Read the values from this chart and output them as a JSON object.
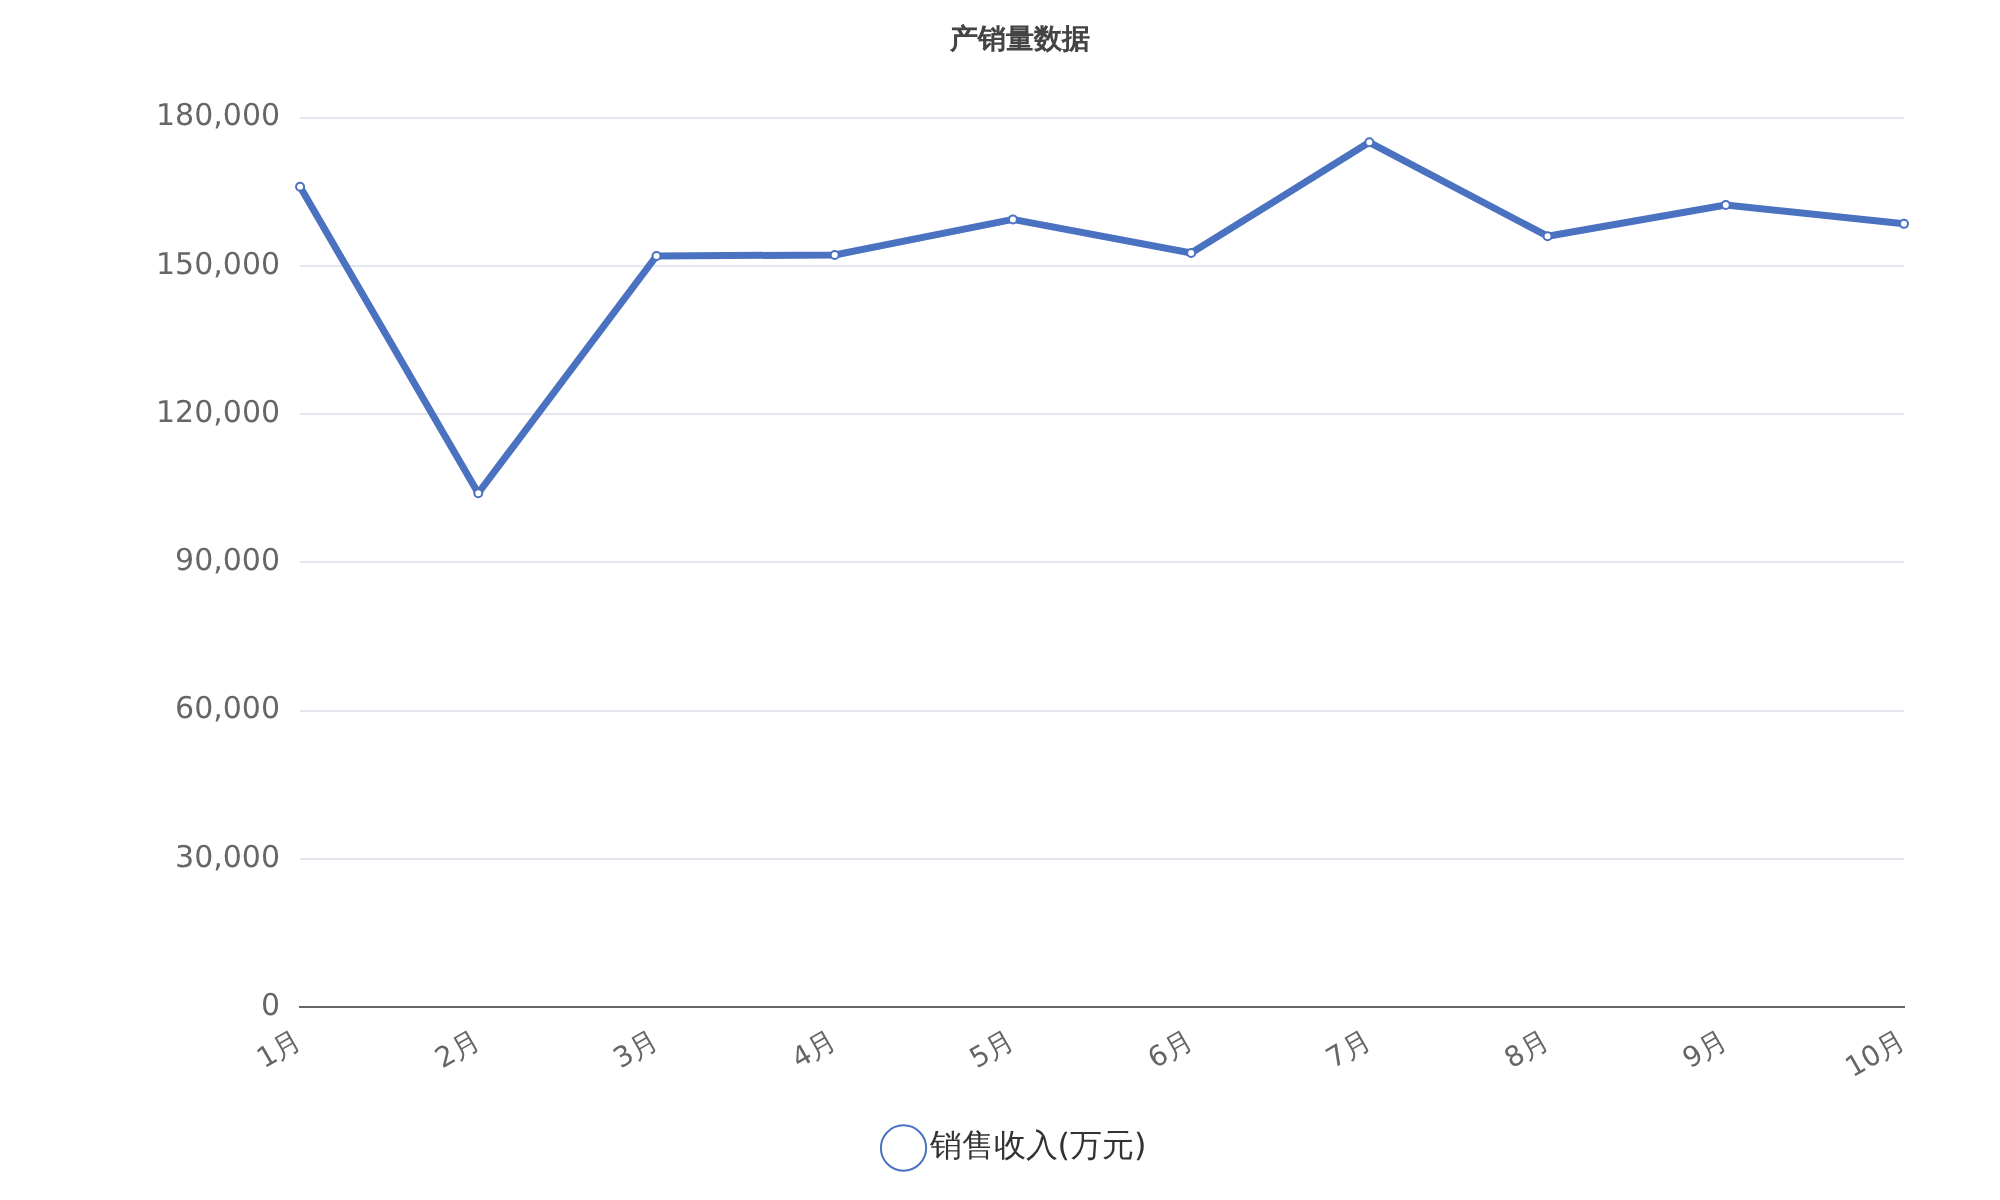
{
  "chart_data": {
    "type": "line",
    "title": "产销量数据",
    "categories": [
      "1月",
      "2月",
      "3月",
      "4月",
      "5月",
      "6月",
      "7月",
      "8月",
      "9月",
      "10月"
    ],
    "series": [
      {
        "name": "销售收入(万元)",
        "color": "#4a72c0",
        "values": [
          166000,
          104000,
          152000,
          152200,
          159400,
          152600,
          175000,
          156000,
          162300,
          158500
        ]
      }
    ],
    "ylim": [
      0,
      180000
    ],
    "yticks": [
      {
        "value": 0,
        "label": "0"
      },
      {
        "value": 30000,
        "label": "30,000"
      },
      {
        "value": 60000,
        "label": "60,000"
      },
      {
        "value": 90000,
        "label": "90,000"
      },
      {
        "value": 120000,
        "label": "120,000"
      },
      {
        "value": 150000,
        "label": "150,000"
      },
      {
        "value": 180000,
        "label": "180,000"
      }
    ],
    "grid": "y",
    "legend": "bottom",
    "marker": "circle",
    "line_style": "solid"
  }
}
